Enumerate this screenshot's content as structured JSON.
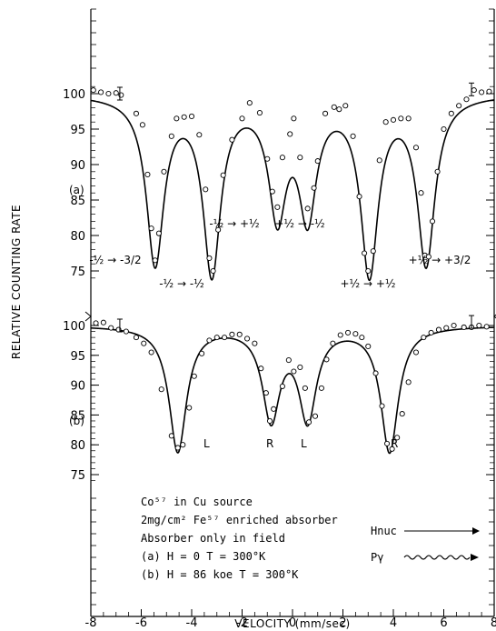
{
  "chart_data": [
    {
      "panel": "(a)",
      "type": "scatter",
      "ylim": [
        72,
        103
      ],
      "yticks": [
        "100",
        "95",
        "90",
        "85",
        "80",
        "75"
      ],
      "fit_curve": {
        "baseline": 100.0,
        "lines": [
          {
            "center": -5.45,
            "depth": 23.5,
            "width": 0.42
          },
          {
            "center": -3.2,
            "depth": 24.7,
            "width": 0.42
          },
          {
            "center": -0.6,
            "depth": 16.2,
            "width": 0.42
          },
          {
            "center": 0.6,
            "depth": 16.2,
            "width": 0.42
          },
          {
            "center": 3.05,
            "depth": 24.7,
            "width": 0.42
          },
          {
            "center": 5.3,
            "depth": 23.5,
            "width": 0.42
          }
        ]
      },
      "points": [
        [
          -7.9,
          100.5
        ],
        [
          -7.6,
          100.2
        ],
        [
          -7.3,
          100.0
        ],
        [
          -7.0,
          100.1
        ],
        [
          -6.8,
          99.8
        ],
        [
          -6.2,
          97.2
        ],
        [
          -5.95,
          95.6
        ],
        [
          -5.75,
          88.6
        ],
        [
          -5.6,
          81.0
        ],
        [
          -5.45,
          76.5
        ],
        [
          -5.3,
          80.3
        ],
        [
          -5.1,
          89.0
        ],
        [
          -4.8,
          94.0
        ],
        [
          -4.6,
          96.5
        ],
        [
          -4.3,
          96.7
        ],
        [
          -4.0,
          96.8
        ],
        [
          -3.7,
          94.2
        ],
        [
          -3.45,
          86.5
        ],
        [
          -3.3,
          76.8
        ],
        [
          -3.15,
          75.0
        ],
        [
          -2.95,
          80.8
        ],
        [
          -2.75,
          88.5
        ],
        [
          -2.4,
          93.5
        ],
        [
          -2.0,
          96.5
        ],
        [
          -1.7,
          98.7
        ],
        [
          -1.3,
          97.3
        ],
        [
          -1.0,
          90.8
        ],
        [
          -0.8,
          86.2
        ],
        [
          -0.6,
          84.0
        ],
        [
          -0.4,
          91.0
        ],
        [
          -0.1,
          94.3
        ],
        [
          0.05,
          96.5
        ],
        [
          0.3,
          91.0
        ],
        [
          0.6,
          83.8
        ],
        [
          0.85,
          86.7
        ],
        [
          1.0,
          90.5
        ],
        [
          1.3,
          97.2
        ],
        [
          1.65,
          98.1
        ],
        [
          1.85,
          97.8
        ],
        [
          2.1,
          98.3
        ],
        [
          2.4,
          94.0
        ],
        [
          2.65,
          85.5
        ],
        [
          2.85,
          77.5
        ],
        [
          3.0,
          75.0
        ],
        [
          3.2,
          77.8
        ],
        [
          3.45,
          90.6
        ],
        [
          3.7,
          96.0
        ],
        [
          4.0,
          96.3
        ],
        [
          4.3,
          96.5
        ],
        [
          4.6,
          96.5
        ],
        [
          4.9,
          92.4
        ],
        [
          5.1,
          86.0
        ],
        [
          5.25,
          77.2
        ],
        [
          5.4,
          77.0
        ],
        [
          5.55,
          82.0
        ],
        [
          5.75,
          89.0
        ],
        [
          6.0,
          95.0
        ],
        [
          6.3,
          97.2
        ],
        [
          6.6,
          98.3
        ],
        [
          6.9,
          99.2
        ],
        [
          7.2,
          100.5
        ],
        [
          7.5,
          100.2
        ],
        [
          7.8,
          100.3
        ]
      ],
      "transition_labels": [
        "-½→-3/2",
        "-½→-½",
        "-½→+½",
        "+½→-½",
        "+½→+½",
        "+½→+3/2"
      ]
    },
    {
      "panel": "(b)",
      "type": "scatter",
      "ylim": [
        72,
        103
      ],
      "yticks": [
        "100",
        "95",
        "90",
        "85",
        "80",
        "75"
      ],
      "fit_curve": {
        "baseline": 100.0,
        "lines": [
          {
            "center": -4.55,
            "depth": 21.0,
            "width": 0.42
          },
          {
            "center": -0.85,
            "depth": 15.2,
            "width": 0.42
          },
          {
            "center": 0.6,
            "depth": 15.2,
            "width": 0.42
          },
          {
            "center": 3.85,
            "depth": 21.0,
            "width": 0.42
          }
        ]
      },
      "points": [
        [
          -7.8,
          100.4
        ],
        [
          -7.5,
          100.5
        ],
        [
          -7.2,
          99.6
        ],
        [
          -6.9,
          99.3
        ],
        [
          -6.6,
          99.0
        ],
        [
          -6.2,
          98.0
        ],
        [
          -5.9,
          97.0
        ],
        [
          -5.6,
          95.5
        ],
        [
          -5.2,
          89.3
        ],
        [
          -4.8,
          81.5
        ],
        [
          -4.55,
          79.5
        ],
        [
          -4.35,
          80.0
        ],
        [
          -4.1,
          86.2
        ],
        [
          -3.9,
          91.5
        ],
        [
          -3.6,
          95.3
        ],
        [
          -3.3,
          97.5
        ],
        [
          -3.0,
          98.0
        ],
        [
          -2.7,
          98.0
        ],
        [
          -2.4,
          98.5
        ],
        [
          -2.1,
          98.5
        ],
        [
          -1.8,
          97.8
        ],
        [
          -1.5,
          97.0
        ],
        [
          -1.25,
          92.8
        ],
        [
          -1.05,
          88.7
        ],
        [
          -0.9,
          84.0
        ],
        [
          -0.75,
          86.0
        ],
        [
          -0.4,
          89.8
        ],
        [
          -0.15,
          94.2
        ],
        [
          0.05,
          92.3
        ],
        [
          0.3,
          93.0
        ],
        [
          0.5,
          89.5
        ],
        [
          0.65,
          83.8
        ],
        [
          0.9,
          84.8
        ],
        [
          1.15,
          89.5
        ],
        [
          1.35,
          94.3
        ],
        [
          1.6,
          97.0
        ],
        [
          1.9,
          98.4
        ],
        [
          2.2,
          98.8
        ],
        [
          2.5,
          98.6
        ],
        [
          2.75,
          98.0
        ],
        [
          3.0,
          96.5
        ],
        [
          3.3,
          92.0
        ],
        [
          3.55,
          86.5
        ],
        [
          3.75,
          80.2
        ],
        [
          3.95,
          79.3
        ],
        [
          4.15,
          81.2
        ],
        [
          4.35,
          85.2
        ],
        [
          4.6,
          90.5
        ],
        [
          4.9,
          95.5
        ],
        [
          5.2,
          98.0
        ],
        [
          5.5,
          98.8
        ],
        [
          5.8,
          99.3
        ],
        [
          6.1,
          99.6
        ],
        [
          6.4,
          100.0
        ],
        [
          6.8,
          99.7
        ],
        [
          7.1,
          99.7
        ],
        [
          7.4,
          100.0
        ],
        [
          7.7,
          99.8
        ]
      ],
      "peak_labels": [
        "L",
        "R",
        "L",
        "R"
      ]
    }
  ],
  "axes": {
    "xlabel": "VELOCITY (mm/sec)",
    "ylabel": "RELATIVE COUNTING RATE",
    "xlim": [
      -8,
      8
    ],
    "xticks": [
      "-8",
      "-6",
      "-4",
      "-2",
      "0",
      "2",
      "4",
      "6",
      "8"
    ]
  },
  "panels": {
    "a_label": "(a)",
    "b_label": "(b)"
  },
  "transitions_a": {
    "t1": "-½ → -3/2",
    "t2": "-½ → -½",
    "t3": "-½ → +½",
    "t4": "+½ → -½",
    "t5": "+½ → +½",
    "t6": "+½ → +3/2"
  },
  "peaks_b": {
    "p1": "L",
    "p2": "R",
    "p3": "L",
    "p4": "R"
  },
  "legend": {
    "line1": "Co⁵⁷ in Cu source",
    "line2": "2mg/cm² Fe⁵⁷ enriched absorber",
    "line3": "Absorber only in field",
    "line4": "(a)  H = 0   T = 300°K",
    "line5": "(b)  H = 86 koe  T = 300°K",
    "h_label": "Hnuc",
    "p_label": "Pγ"
  }
}
